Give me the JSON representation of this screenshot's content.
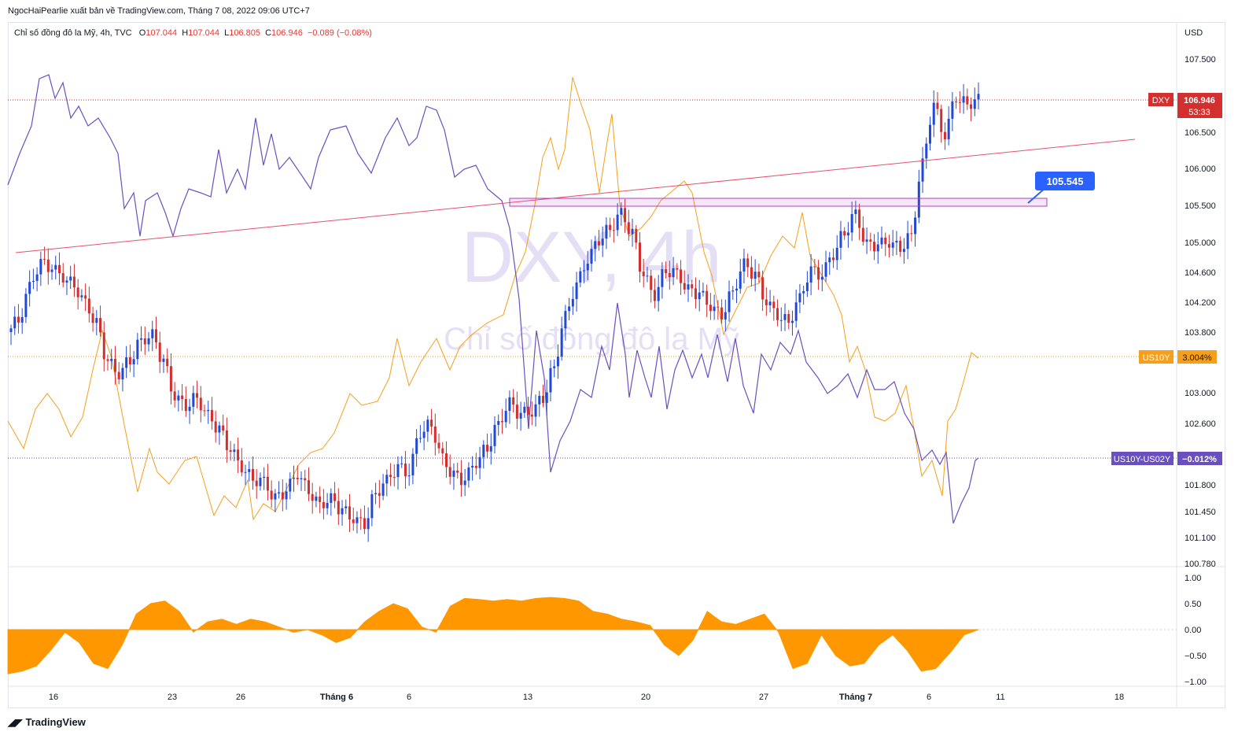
{
  "header": {
    "publisher_line": "NgocHaiPearlie xuất bản về TradingView.com, Tháng 7 08, 2022 09:06 UTC+7"
  },
  "legend": {
    "symbol": "Chỉ số đồng đô la Mỹ, 4h, TVC",
    "o_label": "O",
    "o": "107.044",
    "h_label": "H",
    "h": "107.044",
    "l_label": "L",
    "l": "106.805",
    "c_label": "C",
    "c": "106.946",
    "change": "−0.089 (−0.08%)"
  },
  "watermark": {
    "line1": "DXY, 4h",
    "line2": "Chỉ số đồng đô la Mỹ"
  },
  "footer": {
    "brand": "TradingView"
  },
  "colors": {
    "up": "#2149d8",
    "down": "#d32f2f",
    "us10y": "#f59f1b",
    "spread": "#6a4fc1",
    "trend": "#e8506a",
    "box": "#b23cc4",
    "osc": "#ff9800",
    "callout": "#2962ff"
  },
  "chart_data": [
    {
      "type": "candlestick",
      "title": "Chỉ số đồng đô la Mỹ, 4h, TVC",
      "currency": "USD",
      "y_ticks": [
        "107.500",
        "106.500",
        "106.000",
        "105.500",
        "105.000",
        "104.600",
        "104.200",
        "103.800",
        "103.000",
        "102.600",
        "101.800",
        "101.450",
        "101.100",
        "100.780"
      ],
      "x_ticks": [
        "16",
        "23",
        "26",
        "Tháng 6",
        "6",
        "13",
        "20",
        "27",
        "Tháng 7",
        "6",
        "11",
        "18"
      ],
      "ylim": [
        100.78,
        107.65
      ],
      "last": {
        "open": 107.044,
        "high": 107.044,
        "low": 106.805,
        "close": 106.946
      },
      "price_labels": [
        {
          "name": "DXY",
          "value": "106.946",
          "sub": "53:33"
        },
        {
          "name": "US10Y",
          "value": "3.004%"
        },
        {
          "name": "US10Y-US02Y",
          "value": "−0.012%"
        }
      ],
      "callout_value": "105.545",
      "series": [
        {
          "name": "DXY",
          "kind": "candles",
          "close_path": [
            103.95,
            104.4,
            104.7,
            104.65,
            104.55,
            104.45,
            104.2,
            103.9,
            103.4,
            103.25,
            103.45,
            103.7,
            103.75,
            103.4,
            102.95,
            102.85,
            102.95,
            102.7,
            102.5,
            102.25,
            102.05,
            101.9,
            101.85,
            101.6,
            101.7,
            101.95,
            101.75,
            101.55,
            101.6,
            101.45,
            101.35,
            101.3,
            101.7,
            101.85,
            102.0,
            101.95,
            102.5,
            102.6,
            102.15,
            101.9,
            101.85,
            102.1,
            102.3,
            102.6,
            102.85,
            102.7,
            102.75,
            102.95,
            103.35,
            104.0,
            104.4,
            104.75,
            105.05,
            105.2,
            105.4,
            105.1,
            104.55,
            104.3,
            104.65,
            104.6,
            104.35,
            104.3,
            104.15,
            104.05,
            104.35,
            104.7,
            104.55,
            104.2,
            104.05,
            103.95,
            104.25,
            104.6,
            104.55,
            104.85,
            105.15,
            105.4,
            104.95,
            104.95,
            105.0,
            104.95,
            105.1,
            106.05,
            106.85,
            106.45,
            107.0,
            106.9,
            106.95
          ]
        },
        {
          "name": "US10Y",
          "kind": "line"
        },
        {
          "name": "US10Y-US02Y",
          "kind": "line"
        },
        {
          "name": "trendline",
          "kind": "line"
        }
      ]
    },
    {
      "type": "area",
      "title": "",
      "y_ticks": [
        "1.00",
        "0.50",
        "0.00",
        "−0.50",
        "−1.00"
      ],
      "ylim": [
        -1.0,
        1.0
      ],
      "values": [
        -0.85,
        -0.8,
        -0.7,
        -0.4,
        -0.05,
        -0.25,
        -0.65,
        -0.75,
        -0.3,
        0.3,
        0.5,
        0.55,
        0.35,
        -0.05,
        0.15,
        0.2,
        0.1,
        0.2,
        0.15,
        0.05,
        -0.05,
        0.0,
        -0.1,
        -0.25,
        -0.15,
        0.15,
        0.35,
        0.5,
        0.4,
        0.05,
        -0.05,
        0.45,
        0.6,
        0.58,
        0.55,
        0.58,
        0.55,
        0.6,
        0.62,
        0.6,
        0.55,
        0.35,
        0.3,
        0.2,
        0.15,
        0.08,
        -0.3,
        -0.5,
        -0.2,
        0.35,
        0.15,
        0.1,
        0.2,
        0.3,
        -0.05,
        -0.75,
        -0.65,
        -0.1,
        -0.5,
        -0.7,
        -0.65,
        -0.3,
        -0.1,
        -0.4,
        -0.8,
        -0.75,
        -0.45,
        -0.1,
        0.0
      ]
    }
  ]
}
